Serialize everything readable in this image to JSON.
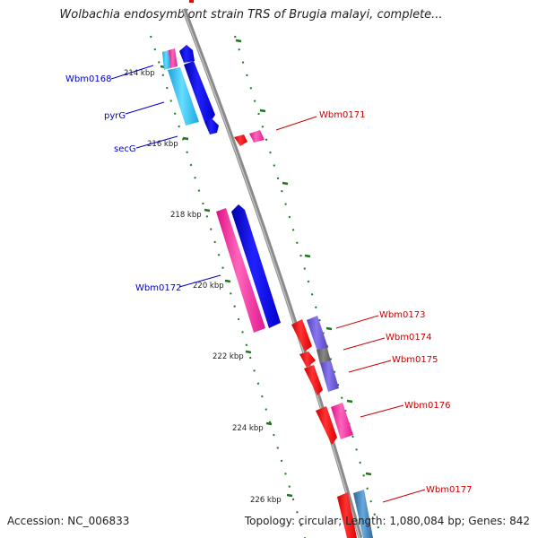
{
  "title": "Wolbachia endosymbiont strain TRS of Brugia malayi, complete...",
  "accession": "Accession: NC_006833",
  "summary": "Topology: circular; Length: 1,080,084 bp; Genes: 842",
  "ruler_ticks": [
    "214 kbp",
    "216 kbp",
    "218 kbp",
    "220 kbp",
    "222 kbp",
    "224 kbp",
    "226 kbp"
  ],
  "gene_labels": [
    "Wbm0168",
    "pyrG",
    "secG",
    "Wbm0172",
    "Wbm0171",
    "Wbm0173",
    "Wbm0174",
    "Wbm0175",
    "Wbm0176",
    "Wbm0177"
  ],
  "colors": {
    "backbone": "#8a8a8a",
    "label_forward": "#0000cc",
    "label_reverse": "#cc0000",
    "ruler": "#1a7a1a",
    "blue": "#0000ee",
    "cyan": "#22bbee",
    "magenta": "#ee2299",
    "red": "#ee0000",
    "purple": "#6655cc",
    "gray": "#666666",
    "steelblue": "#4488bb"
  }
}
